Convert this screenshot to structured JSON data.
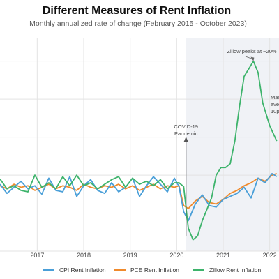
{
  "chart_data": {
    "type": "line",
    "title": "Different Measures of Rent Inflation",
    "subtitle": "Monthly annualized rate of change (February 2015 - October 2023)",
    "xlabel": "",
    "ylabel": "",
    "x_ticks": [
      "2017",
      "2018",
      "2019",
      "2020",
      "2021",
      "2022"
    ],
    "grid": true,
    "legend_position": "bottom",
    "shaded_region": {
      "from": "2020.2",
      "to": "end",
      "color": "#f0f2f6"
    },
    "annotations": [
      {
        "id": "covid",
        "lines": [
          "COVID-19",
          "Pandemic"
        ]
      },
      {
        "id": "zillow_peak",
        "lines": [
          "Zillow peaks at ~20%"
        ]
      },
      {
        "id": "max_partial",
        "lines": [
          "Max",
          "aver",
          "10p"
        ]
      }
    ],
    "series": [
      {
        "name": "CPI Rent Inflation",
        "color": "#4a9fd8",
        "x": [
          2016.2,
          2016.35,
          2016.5,
          2016.65,
          2016.8,
          2016.95,
          2017.1,
          2017.25,
          2017.4,
          2017.55,
          2017.7,
          2017.85,
          2018.0,
          2018.15,
          2018.3,
          2018.45,
          2018.6,
          2018.75,
          2018.9,
          2019.05,
          2019.2,
          2019.35,
          2019.5,
          2019.65,
          2019.8,
          2019.95,
          2020.05,
          2020.15,
          2020.25,
          2020.4,
          2020.55,
          2020.7,
          2020.85,
          2021.0,
          2021.15,
          2021.3,
          2021.45,
          2021.6,
          2021.75,
          2021.9,
          2022.05,
          2022.15
        ],
        "y": [
          3.8,
          2.6,
          3.4,
          4.2,
          3.2,
          3.6,
          2.5,
          4.6,
          3.0,
          2.8,
          4.8,
          2.2,
          3.6,
          4.4,
          3.0,
          2.6,
          4.0,
          2.8,
          3.4,
          4.6,
          2.2,
          3.6,
          4.8,
          3.8,
          2.8,
          4.6,
          3.5,
          0.2,
          -1.0,
          1.2,
          2.4,
          1.0,
          0.8,
          1.8,
          2.2,
          2.6,
          3.4,
          2.0,
          4.6,
          4.0,
          5.2,
          4.8
        ]
      },
      {
        "name": "PCE Rent Inflation",
        "color": "#f08a2c",
        "x": [
          2016.2,
          2016.35,
          2016.5,
          2016.65,
          2016.8,
          2016.95,
          2017.1,
          2017.25,
          2017.4,
          2017.55,
          2017.7,
          2017.85,
          2018.0,
          2018.15,
          2018.3,
          2018.45,
          2018.6,
          2018.75,
          2018.9,
          2019.05,
          2019.2,
          2019.35,
          2019.5,
          2019.65,
          2019.8,
          2019.95,
          2020.05,
          2020.15,
          2020.25,
          2020.4,
          2020.55,
          2020.7,
          2020.85,
          2021.0,
          2021.15,
          2021.3,
          2021.45,
          2021.6,
          2021.75,
          2021.9,
          2022.05,
          2022.15
        ],
        "y": [
          3.6,
          3.2,
          3.8,
          3.4,
          3.6,
          3.0,
          3.4,
          3.8,
          3.2,
          3.6,
          3.4,
          3.0,
          3.8,
          3.4,
          3.2,
          3.6,
          3.4,
          3.8,
          3.2,
          3.6,
          3.0,
          3.4,
          3.8,
          3.2,
          3.6,
          3.4,
          3.6,
          1.0,
          0.6,
          1.6,
          2.2,
          1.4,
          1.2,
          1.8,
          2.6,
          3.0,
          3.6,
          4.0,
          4.6,
          4.2,
          5.0,
          5.2
        ]
      },
      {
        "name": "Zillow Rent Inflation",
        "color": "#3db36b",
        "x": [
          2016.2,
          2016.35,
          2016.5,
          2016.65,
          2016.8,
          2016.95,
          2017.1,
          2017.25,
          2017.4,
          2017.55,
          2017.7,
          2017.85,
          2018.0,
          2018.15,
          2018.3,
          2018.45,
          2018.6,
          2018.75,
          2018.9,
          2019.05,
          2019.2,
          2019.35,
          2019.5,
          2019.65,
          2019.8,
          2019.95,
          2020.05,
          2020.15,
          2020.25,
          2020.35,
          2020.45,
          2020.55,
          2020.65,
          2020.75,
          2020.85,
          2020.95,
          2021.05,
          2021.15,
          2021.25,
          2021.35,
          2021.45,
          2021.55,
          2021.65,
          2021.75,
          2021.85,
          2022.0,
          2022.15
        ],
        "y": [
          4.5,
          3.2,
          3.6,
          3.0,
          2.8,
          5.0,
          3.4,
          4.0,
          3.2,
          4.8,
          3.6,
          5.0,
          3.6,
          4.0,
          3.2,
          3.8,
          4.4,
          4.8,
          3.4,
          4.6,
          3.8,
          4.2,
          3.6,
          4.4,
          3.2,
          4.0,
          4.0,
          3.5,
          -2.0,
          -3.5,
          -3.0,
          -1.0,
          0.5,
          2.0,
          5.0,
          6.0,
          6.0,
          6.5,
          9.5,
          14.0,
          18.0,
          19.0,
          20.0,
          18.5,
          14.5,
          11.5,
          9.5
        ]
      }
    ]
  },
  "legend": {
    "items": [
      {
        "label": "CPI Rent Inflation",
        "color": "#4a9fd8"
      },
      {
        "label": "PCE Rent Inflation",
        "color": "#f08a2c"
      },
      {
        "label": "Zillow Rent Inflation",
        "color": "#3db36b"
      }
    ]
  }
}
